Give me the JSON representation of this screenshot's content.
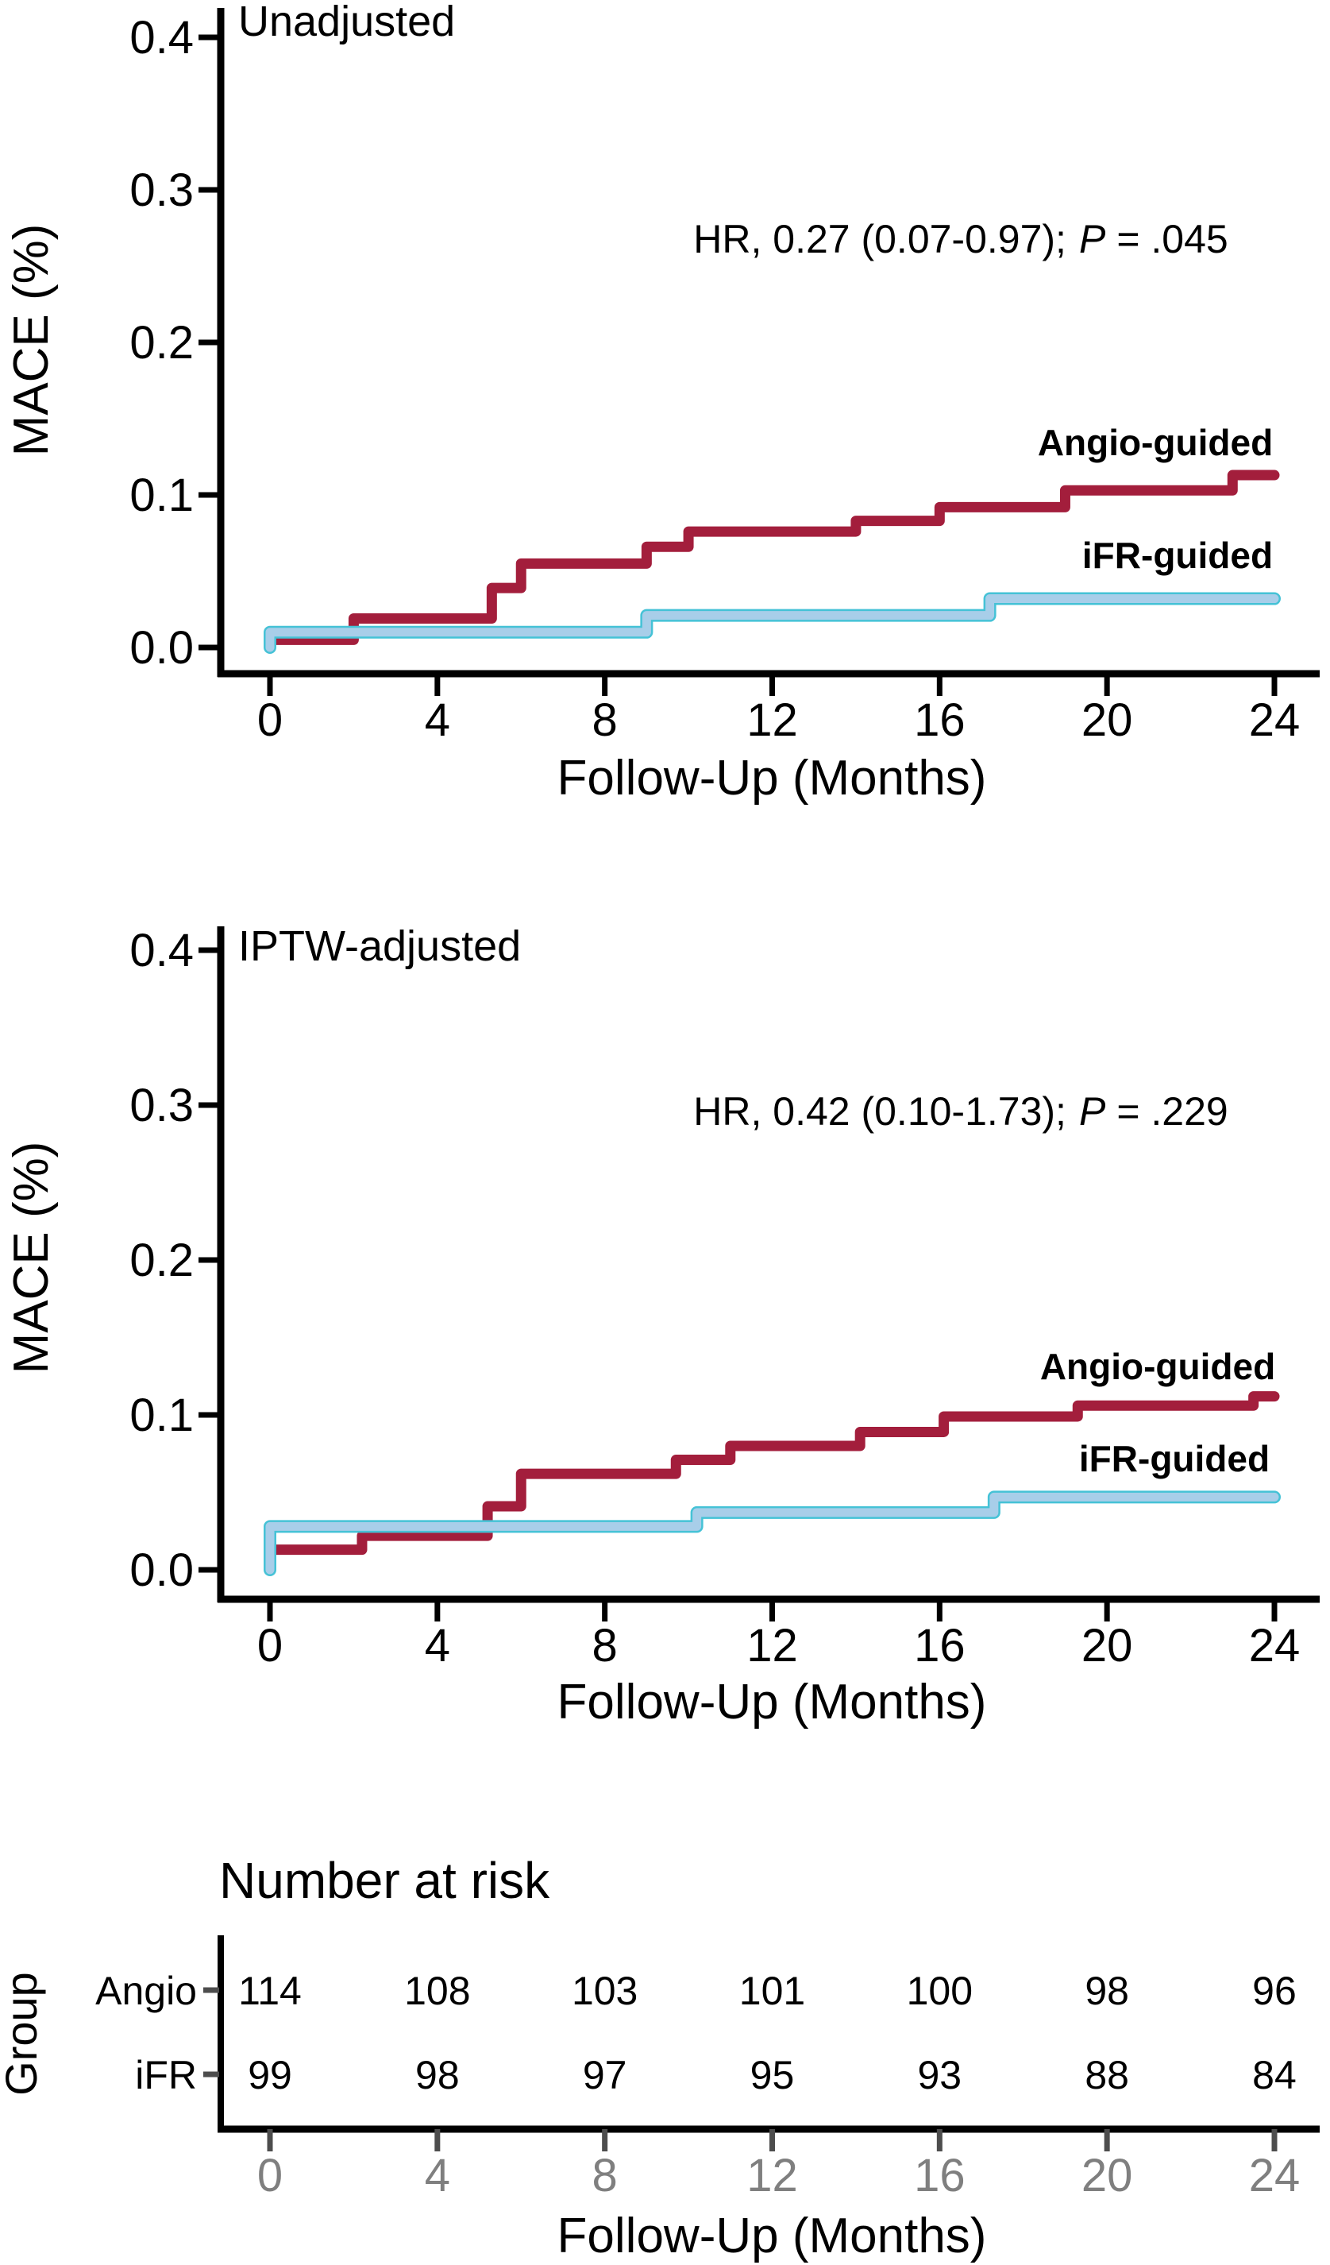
{
  "colors": {
    "angio": "#A31E3C",
    "ifr_fill": "#A8CEE9",
    "ifr_edge": "#45C2D6",
    "axis": "#000000",
    "gray_label": "#7F7F7F",
    "table_tick": "#4D4D4D",
    "background": "#FFFFFF"
  },
  "chart_data": [
    {
      "type": "line",
      "subtype": "step-km",
      "title": "Unadjusted",
      "xlabel": "Follow-Up (Months)",
      "ylabel": "MACE (%)",
      "xlim": [
        0,
        24
      ],
      "ylim": [
        0,
        0.42
      ],
      "xticks": [
        0,
        4,
        8,
        12,
        16,
        20,
        24
      ],
      "ytick_labels": [
        "0.0",
        "0.1",
        "0.2",
        "0.3",
        "0.4"
      ],
      "grid": "off",
      "legend_position": "inline-right",
      "annotation": "HR, 0.27 (0.07-0.97); P = .045",
      "annotation_parts": {
        "hr": "HR, 0.27 (0.07-0.97);",
        "p": "P",
        "eq": "= .045"
      },
      "series": [
        {
          "name": "Angio-guided",
          "color": "#A31E3C",
          "start_at_zero": false,
          "x": [
            0,
            2,
            5.3,
            6,
            9,
            10,
            14,
            16,
            19,
            23,
            24
          ],
          "y": [
            0.005,
            0.019,
            0.039,
            0.055,
            0.066,
            0.076,
            0.083,
            0.092,
            0.103,
            0.113,
            0.113
          ],
          "label_month": 21.2,
          "label_value": 0.134
        },
        {
          "name": "iFR-guided",
          "color": "#A8CEE9",
          "edge_color": "#45C2D6",
          "start_at_zero": true,
          "x": [
            0,
            9,
            17.2,
            24
          ],
          "y": [
            0.01,
            0.021,
            0.032,
            0.032
          ],
          "label_month": 21.7,
          "label_value": 0.06
        }
      ]
    },
    {
      "type": "line",
      "subtype": "step-km",
      "title": "IPTW-adjusted",
      "xlabel": "Follow-Up (Months)",
      "ylabel": "MACE (%)",
      "xlim": [
        0,
        24
      ],
      "ylim": [
        0,
        0.42
      ],
      "xticks": [
        0,
        4,
        8,
        12,
        16,
        20,
        24
      ],
      "ytick_labels": [
        "0.0",
        "0.1",
        "0.2",
        "0.3",
        "0.4"
      ],
      "grid": "off",
      "legend_position": "inline-right",
      "annotation": "HR, 0.42 (0.10-1.73); P = .229",
      "annotation_parts": {
        "hr": "HR, 0.42 (0.10-1.73);",
        "p": "P",
        "eq": "= .229"
      },
      "series": [
        {
          "name": "Angio-guided",
          "color": "#A31E3C",
          "start_at_zero": false,
          "x": [
            0,
            2.2,
            5.2,
            6,
            9.7,
            11,
            14.1,
            16.1,
            19.3,
            23.5,
            24
          ],
          "y": [
            0.013,
            0.022,
            0.041,
            0.062,
            0.071,
            0.08,
            0.089,
            0.099,
            0.106,
            0.112,
            0.112
          ],
          "label_month": 21.2,
          "label_value": 0.131
        },
        {
          "name": "iFR-guided",
          "color": "#A8CEE9",
          "edge_color": "#45C2D6",
          "start_at_zero": true,
          "x": [
            0,
            10.2,
            17.3,
            24
          ],
          "y": [
            0.028,
            0.037,
            0.047,
            0.047
          ],
          "label_month": 21.6,
          "label_value": 0.072
        }
      ]
    },
    {
      "type": "table",
      "title": "Number at risk",
      "group_axis_label": "Group",
      "xlabel": "Follow-Up (Months)",
      "months": [
        0,
        4,
        8,
        12,
        16,
        20,
        24
      ],
      "rows": [
        {
          "label": "Angio",
          "color": "#A31E3C",
          "values": [
            114,
            108,
            103,
            101,
            100,
            98,
            96
          ]
        },
        {
          "label": "iFR",
          "color": "#A8CEE9",
          "values": [
            99,
            98,
            97,
            95,
            93,
            88,
            84
          ]
        }
      ]
    }
  ]
}
